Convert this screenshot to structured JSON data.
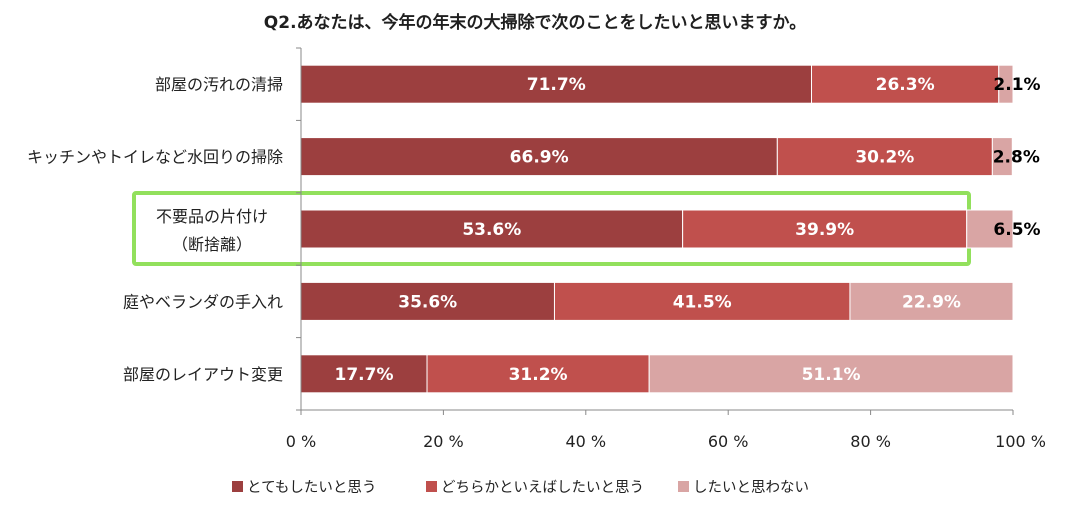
{
  "chart_data": {
    "type": "bar",
    "orientation": "horizontal",
    "stacked": true,
    "title": "Q2.あなたは、今年の年末の大掃除で次のことをしたいと思いますか。",
    "categories": [
      [
        "部屋の汚れの清掃"
      ],
      [
        "キッチンやトイレなど水回りの掃除"
      ],
      [
        "不要品の片付け",
        "（断捨離）"
      ],
      [
        "庭やベランダの手入れ"
      ],
      [
        "部屋のレイアウト変更"
      ]
    ],
    "highlighted_category_index": 2,
    "highlight_color": "#92e05c",
    "series": [
      {
        "name": "とてもしたいと思う",
        "color": "#9c3f3f",
        "values": [
          71.7,
          66.9,
          53.6,
          35.6,
          17.7
        ],
        "labels": [
          "71.7%",
          "66.9%",
          "53.6%",
          "35.6%",
          "17.7%"
        ]
      },
      {
        "name": "どちらかといえばしたいと思う",
        "color": "#c0504d",
        "values": [
          26.3,
          30.2,
          39.9,
          41.5,
          31.2
        ],
        "labels": [
          "26.3%",
          "30.2%",
          "39.9%",
          "41.5%",
          "31.2%"
        ]
      },
      {
        "name": "したいと思わない",
        "color": "#d9a5a4",
        "values": [
          2.1,
          2.8,
          6.5,
          22.9,
          51.1
        ],
        "labels": [
          "2.1%",
          "2.8%",
          "6.5%",
          "22.9%",
          "51.1%"
        ]
      }
    ],
    "xlim": [
      0,
      100
    ],
    "x_ticks": [
      "0 %",
      "20 %",
      "40 %",
      "60 %",
      "80 %",
      "100 %"
    ],
    "legend_position": "bottom",
    "grid": false
  }
}
